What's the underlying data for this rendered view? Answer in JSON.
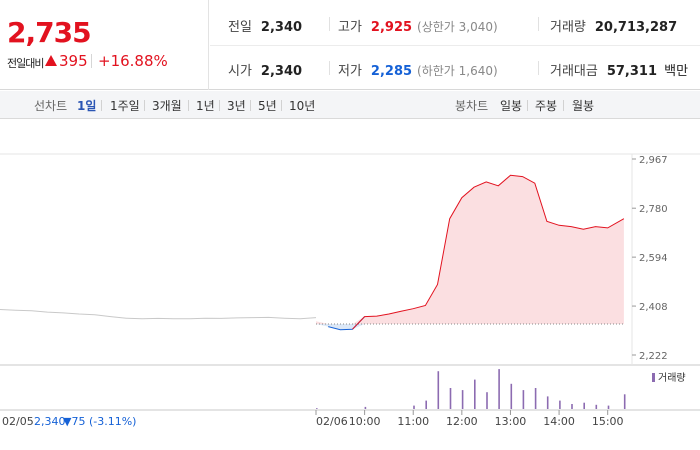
{
  "header": {
    "price": "2,735",
    "change_label": "전일대비",
    "change_amount": "395",
    "change_percent": "+16.88%",
    "prev_close_label": "전일",
    "prev_close": "2,340",
    "open_label": "시가",
    "open": "2,340",
    "high_label": "고가",
    "high": "2,925",
    "upper_limit": "(상한가 3,040)",
    "low_label": "저가",
    "low": "2,285",
    "lower_limit": "(하한가 1,640)",
    "volume_label": "거래량",
    "volume": "20,713,287",
    "value_label": "거래대금",
    "value": "57,311",
    "value_unit": "백만",
    "colors": {
      "up": "#e2121f",
      "down": "#1561d6"
    }
  },
  "tabs": {
    "line_label": "선차트",
    "line_tabs": [
      "1일",
      "1주일",
      "3개월",
      "1년",
      "3년",
      "5년",
      "10년"
    ],
    "selected_line_tab": "1일",
    "candle_label": "봉차트",
    "candle_tabs": [
      "일봉",
      "주봉",
      "월봉"
    ]
  },
  "footer": {
    "prev_date": "02/05",
    "prev_price": "2,340",
    "prev_change": "▼75 (-3.11%)"
  },
  "chart_data": {
    "type": "line",
    "title": "",
    "y_ticks": [
      "2,967",
      "2,780",
      "2,594",
      "2,408",
      "2,222"
    ],
    "ylim": [
      2222,
      2967
    ],
    "reference_price": 2340,
    "x_ticks": [
      "02/06",
      "10:00",
      "11:00",
      "12:00",
      "13:00",
      "14:00",
      "15:00"
    ],
    "legend": [
      "거래량"
    ],
    "prev_day_series": {
      "name": "02/05",
      "x": [
        0,
        0.05,
        0.1,
        0.15,
        0.2,
        0.25,
        0.3,
        0.35,
        0.4,
        0.45,
        0.5,
        0.55,
        0.6,
        0.65,
        0.7,
        0.75,
        0.8,
        0.85,
        0.9,
        0.95,
        1.0
      ],
      "values": [
        2395,
        2392,
        2390,
        2385,
        2382,
        2378,
        2375,
        2368,
        2362,
        2360,
        2361,
        2360,
        2360,
        2362,
        2361,
        2363,
        2364,
        2365,
        2362,
        2360,
        2364
      ]
    },
    "series": [
      {
        "x": [
          "09:00",
          "09:15",
          "09:30",
          "09:45",
          "10:00",
          "10:15",
          "10:30",
          "10:45",
          "11:00",
          "11:15",
          "11:30",
          "11:45",
          "12:00",
          "12:15",
          "12:30",
          "12:45",
          "13:00",
          "13:15",
          "13:30",
          "13:45",
          "14:00",
          "14:15",
          "14:30",
          "14:45",
          "15:00",
          "15:20"
        ],
        "values": [
          2350,
          2330,
          2318,
          2320,
          2368,
          2370,
          2378,
          2388,
          2398,
          2410,
          2490,
          2740,
          2820,
          2860,
          2880,
          2865,
          2905,
          2900,
          2875,
          2730,
          2715,
          2710,
          2700,
          2710,
          2705,
          2740
        ]
      }
    ],
    "volume": {
      "x": [
        "09:00",
        "10:00",
        "11:00",
        "11:15",
        "11:30",
        "11:45",
        "12:00",
        "12:15",
        "12:30",
        "12:45",
        "13:00",
        "13:15",
        "13:30",
        "13:45",
        "14:00",
        "14:15",
        "14:30",
        "14:45",
        "15:00",
        "15:20"
      ],
      "values": [
        0.02,
        0.05,
        0.08,
        0.2,
        0.9,
        0.5,
        0.45,
        0.7,
        0.4,
        0.95,
        0.6,
        0.45,
        0.5,
        0.3,
        0.2,
        0.12,
        0.15,
        0.1,
        0.08,
        0.35
      ]
    }
  }
}
